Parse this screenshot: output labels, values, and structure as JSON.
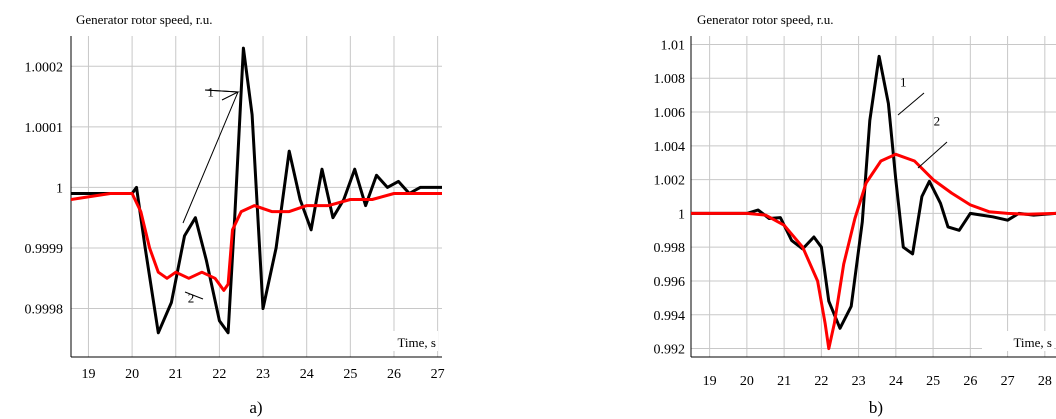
{
  "chart_data": [
    {
      "type": "line",
      "panel_label": "a)",
      "title": "Generator rotor speed, r.u.",
      "xlabel": "Time, s",
      "ylabel": "",
      "xlim": [
        18.6,
        27.1
      ],
      "ylim": [
        0.99972,
        1.00025
      ],
      "grid": true,
      "x_ticks": [
        19,
        20,
        21,
        22,
        23,
        24,
        25,
        26,
        27
      ],
      "y_ticks": [
        0.9998,
        0.9999,
        1,
        1.0001,
        1.0002
      ],
      "y_tick_labels": [
        "0.9998",
        "0.9999",
        "1",
        "1.0001",
        "1.0002"
      ],
      "annotations": [
        {
          "text": "1",
          "x": 21.8,
          "y": 1.00015
        },
        {
          "text": "2",
          "x": 21.35,
          "y": 0.99981
        }
      ],
      "series": [
        {
          "color": "#000000",
          "x": [
            18.6,
            19.5,
            20.0,
            20.1,
            20.3,
            20.6,
            20.9,
            21.2,
            21.45,
            21.7,
            22.0,
            22.2,
            22.35,
            22.55,
            22.75,
            23.0,
            23.3,
            23.6,
            23.85,
            24.1,
            24.35,
            24.6,
            24.85,
            25.1,
            25.35,
            25.6,
            25.85,
            26.1,
            26.35,
            26.6,
            26.85,
            27.1
          ],
          "values": [
            0.99999,
            0.99999,
            0.99999,
            1.0,
            0.9999,
            0.99976,
            0.99981,
            0.99992,
            0.99995,
            0.99988,
            0.99978,
            0.99976,
            0.99995,
            1.00023,
            1.00012,
            0.9998,
            0.9999,
            1.00006,
            0.99998,
            0.99993,
            1.00003,
            0.99995,
            0.99998,
            1.00003,
            0.99997,
            1.00002,
            1.0,
            1.00001,
            0.99999,
            1.0,
            1.0,
            1.0
          ]
        },
        {
          "color": "#ff0000",
          "x": [
            18.6,
            19.5,
            20.0,
            20.2,
            20.4,
            20.6,
            20.8,
            21.0,
            21.3,
            21.6,
            21.9,
            22.1,
            22.2,
            22.3,
            22.5,
            22.8,
            23.2,
            23.6,
            24.0,
            24.5,
            25.0,
            25.5,
            26.0,
            26.5,
            27.1
          ],
          "values": [
            0.99998,
            0.99999,
            0.99999,
            0.99996,
            0.9999,
            0.99986,
            0.99985,
            0.99986,
            0.99985,
            0.99986,
            0.99985,
            0.99983,
            0.99984,
            0.99993,
            0.99996,
            0.99997,
            0.99996,
            0.99996,
            0.99997,
            0.99997,
            0.99998,
            0.99998,
            0.99999,
            0.99999,
            0.99999
          ]
        }
      ]
    },
    {
      "type": "line",
      "panel_label": "b)",
      "title": "Generator rotor speed, r.u.",
      "xlabel": "Time, s",
      "ylabel": "",
      "xlim": [
        18.5,
        28.3
      ],
      "ylim": [
        0.9915,
        1.0105
      ],
      "grid": true,
      "x_ticks": [
        19,
        20,
        21,
        22,
        23,
        24,
        25,
        26,
        27,
        28
      ],
      "x_tick_labels": [
        "19",
        "20",
        "21",
        "22",
        "23",
        "24",
        "25",
        "26",
        "27",
        "28"
      ],
      "y_ticks": [
        0.992,
        0.994,
        0.996,
        0.998,
        1.0,
        1.002,
        1.004,
        1.006,
        1.008,
        1.01
      ],
      "y_tick_labels": [
        "0.992",
        "0.994",
        "0.996",
        "0.998",
        "1",
        "1.002",
        "1.004",
        "1.006",
        "1.008",
        "1.01"
      ],
      "annotations": [
        {
          "text": "1",
          "x": 24.2,
          "y": 1.0075
        },
        {
          "text": "2",
          "x": 25.1,
          "y": 1.0052
        }
      ],
      "series": [
        {
          "color": "#000000",
          "x": [
            18.5,
            20.0,
            20.3,
            20.6,
            20.9,
            21.2,
            21.5,
            21.8,
            22.0,
            22.2,
            22.5,
            22.8,
            23.1,
            23.3,
            23.55,
            23.8,
            24.0,
            24.2,
            24.45,
            24.7,
            24.9,
            25.2,
            25.4,
            25.7,
            26.0,
            26.3,
            26.6,
            27.0,
            27.3,
            27.7,
            28.3
          ],
          "values": [
            1.0,
            1.0,
            1.0002,
            0.9997,
            0.99975,
            0.9984,
            0.9979,
            0.9986,
            0.998,
            0.9948,
            0.9932,
            0.9945,
            0.9995,
            1.0055,
            1.0093,
            1.0065,
            1.002,
            0.998,
            0.9976,
            1.001,
            1.0019,
            1.0006,
            0.9992,
            0.999,
            1.0,
            0.9999,
            0.9998,
            0.9996,
            1.0,
            0.9999,
            1.0
          ]
        },
        {
          "color": "#ff0000",
          "x": [
            18.5,
            20.0,
            20.5,
            21.0,
            21.5,
            21.9,
            22.1,
            22.2,
            22.35,
            22.6,
            22.9,
            23.2,
            23.6,
            24.0,
            24.5,
            25.0,
            25.5,
            26.0,
            26.5,
            27.0,
            27.5,
            28.3
          ],
          "values": [
            1.0,
            1.0,
            0.9999,
            0.9993,
            0.998,
            0.996,
            0.9935,
            0.992,
            0.9935,
            0.997,
            0.9997,
            1.0018,
            1.0031,
            1.0035,
            1.0031,
            1.002,
            1.0012,
            1.0005,
            1.0001,
            1.0,
            0.99995,
            1.0
          ]
        }
      ]
    }
  ]
}
